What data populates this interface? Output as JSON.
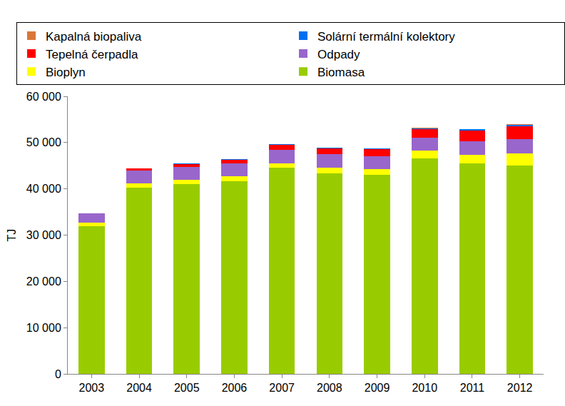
{
  "chart_data": {
    "type": "bar",
    "stacked": true,
    "grid": false,
    "legend": "top",
    "y_label": "TJ",
    "categories": [
      "2003",
      "2004",
      "2005",
      "2006",
      "2007",
      "2008",
      "2009",
      "2010",
      "2011",
      "2012"
    ],
    "ylim": [
      0,
      60000
    ],
    "yticks": [
      0,
      {
        "value": 10000,
        "label": "10 000"
      },
      {
        "value": 20000,
        "label": "20 000"
      },
      {
        "value": 30000,
        "label": "30 000"
      },
      {
        "value": 40000,
        "label": "40 000"
      },
      {
        "value": 50000,
        "label": "50 000"
      },
      {
        "value": 60000,
        "label": "60 000"
      }
    ],
    "series": [
      {
        "name": "Biomasa",
        "color": "#99cc00",
        "values": [
          32000,
          40200,
          41000,
          41700,
          44500,
          43400,
          43000,
          46600,
          45500,
          45100
        ]
      },
      {
        "name": "Bioplyn",
        "color": "#ffff00",
        "values": [
          700,
          1000,
          900,
          1000,
          1000,
          1100,
          1200,
          1700,
          1900,
          2600
        ]
      },
      {
        "name": "Odpady",
        "color": "#9966cc",
        "values": [
          2000,
          2700,
          2900,
          2800,
          2900,
          3000,
          2800,
          2800,
          2900,
          3100
        ]
      },
      {
        "name": "Tepelná čerpadla",
        "color": "#ff0000",
        "values": [
          0,
          500,
          600,
          800,
          1100,
          1200,
          1600,
          1800,
          2300,
          2700
        ]
      },
      {
        "name": "Solární termální kolektory",
        "color": "#0070f0",
        "values": [
          0,
          50,
          60,
          80,
          100,
          120,
          150,
          200,
          300,
          400
        ]
      },
      {
        "name": "Kapalná biopaliva",
        "color": "#d9773a",
        "values": [
          0,
          0,
          0,
          0,
          0,
          0,
          0,
          50,
          50,
          50
        ]
      }
    ]
  }
}
